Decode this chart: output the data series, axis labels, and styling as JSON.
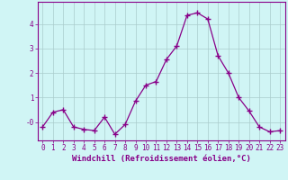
{
  "x": [
    0,
    1,
    2,
    3,
    4,
    5,
    6,
    7,
    8,
    9,
    10,
    11,
    12,
    13,
    14,
    15,
    16,
    17,
    18,
    19,
    20,
    21,
    22,
    23
  ],
  "y": [
    -0.2,
    0.4,
    0.5,
    -0.2,
    -0.3,
    -0.35,
    0.2,
    -0.5,
    -0.1,
    0.85,
    1.5,
    1.65,
    2.55,
    3.1,
    4.35,
    4.45,
    4.2,
    2.7,
    2.0,
    1.0,
    0.45,
    -0.2,
    -0.4,
    -0.35
  ],
  "line_color": "#880088",
  "marker": "+",
  "marker_size": 4,
  "bg_color": "#d0f5f5",
  "grid_color": "#aacccc",
  "xlabel": "Windchill (Refroidissement éolien,°C)",
  "xlabel_fontsize": 6.5,
  "yticks": [
    0,
    1,
    2,
    3,
    4
  ],
  "ytick_labels": [
    "-0",
    "1",
    "2",
    "3",
    "4"
  ],
  "xtick_labels": [
    "0",
    "1",
    "2",
    "3",
    "4",
    "5",
    "6",
    "7",
    "8",
    "9",
    "10",
    "11",
    "12",
    "13",
    "14",
    "15",
    "16",
    "17",
    "18",
    "19",
    "20",
    "21",
    "22",
    "23"
  ],
  "ylim": [
    -0.75,
    4.9
  ],
  "xlim": [
    -0.5,
    23.5
  ],
  "axis_color": "#880088",
  "tick_color": "#880088",
  "tick_fontsize": 5.5,
  "lw": 0.9
}
